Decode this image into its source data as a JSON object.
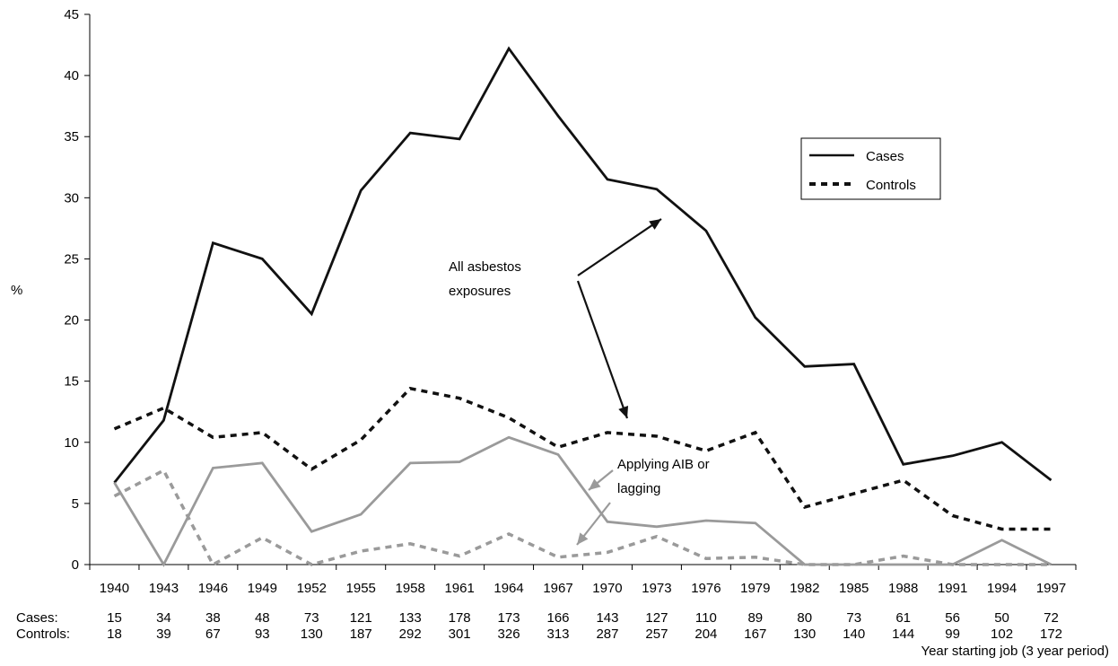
{
  "chart_data": {
    "type": "line",
    "title": "",
    "xlabel": "Year starting job (3 year period)",
    "ylabel": "%",
    "ylim": [
      0,
      45
    ],
    "yticks": [
      0,
      5,
      10,
      15,
      20,
      25,
      30,
      35,
      40,
      45
    ],
    "grid": false,
    "legend_position": "top-right",
    "categories": [
      "1940",
      "1943",
      "1946",
      "1949",
      "1952",
      "1955",
      "1958",
      "1961",
      "1964",
      "1967",
      "1970",
      "1973",
      "1976",
      "1979",
      "1982",
      "1985",
      "1988",
      "1991",
      "1994",
      "1997"
    ],
    "series": [
      {
        "name": "Cases",
        "group": "All asbestos exposures",
        "style": "solid",
        "color": "#111111",
        "values": [
          6.7,
          11.8,
          26.3,
          25.0,
          20.5,
          30.6,
          35.3,
          34.8,
          42.2,
          36.7,
          31.5,
          30.7,
          27.3,
          20.2,
          16.2,
          16.4,
          8.2,
          8.9,
          10.0,
          6.9
        ]
      },
      {
        "name": "Controls",
        "group": "All asbestos exposures",
        "style": "dashed",
        "color": "#111111",
        "values": [
          11.1,
          12.8,
          10.4,
          10.8,
          7.8,
          10.2,
          14.4,
          13.6,
          12.0,
          9.6,
          10.8,
          10.5,
          9.3,
          10.8,
          4.7,
          5.8,
          6.9,
          4.0,
          2.9,
          2.9
        ]
      },
      {
        "name": "Cases",
        "group": "Applying AIB or lagging",
        "style": "solid",
        "color": "#9a9a9a",
        "values": [
          6.7,
          0.0,
          7.9,
          8.3,
          2.7,
          4.1,
          8.3,
          8.4,
          10.4,
          9.0,
          3.5,
          3.1,
          3.6,
          3.4,
          0.0,
          0.0,
          0.0,
          0.0,
          2.0,
          0.0
        ]
      },
      {
        "name": "Controls",
        "group": "Applying AIB or lagging",
        "style": "dashed",
        "color": "#9a9a9a",
        "values": [
          5.6,
          7.7,
          0.0,
          2.2,
          0.0,
          1.1,
          1.7,
          0.7,
          2.5,
          0.6,
          1.0,
          2.3,
          0.5,
          0.6,
          0.0,
          0.0,
          0.7,
          0.0,
          0.0,
          0.0
        ]
      }
    ],
    "legend": [
      {
        "label": "Cases",
        "style": "solid"
      },
      {
        "label": "Controls",
        "style": "dashed"
      }
    ],
    "annotations": [
      {
        "lines": [
          "All asbestos",
          "exposures"
        ],
        "color": "#111111"
      },
      {
        "lines": [
          "Applying AIB or",
          "lagging"
        ],
        "color": "#9a9a9a"
      }
    ],
    "counts": {
      "cases_label": "Cases:",
      "controls_label": "Controls:",
      "cases": [
        "15",
        "34",
        "38",
        "48",
        "73",
        "121",
        "133",
        "178",
        "173",
        "166",
        "143",
        "127",
        "110",
        "89",
        "80",
        "73",
        "61",
        "56",
        "50",
        "72"
      ],
      "controls": [
        "18",
        "39",
        "67",
        "93",
        "130",
        "187",
        "292",
        "301",
        "326",
        "313",
        "287",
        "257",
        "204",
        "167",
        "130",
        "140",
        "144",
        "99",
        "102",
        "172"
      ]
    }
  }
}
